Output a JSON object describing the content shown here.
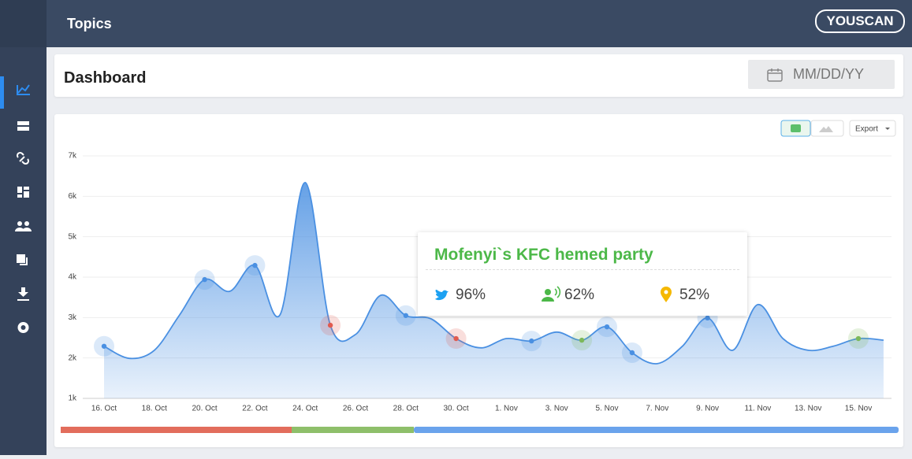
{
  "header": {
    "title": "Topics",
    "brand": "YOUSCAN"
  },
  "dashboard": {
    "title": "Dashboard",
    "date_placeholder": "MM/DD/YY",
    "export": "Export"
  },
  "tooltip": {
    "title": "Mofenyi`s KFC hemed party",
    "stats": [
      "96%",
      "62%",
      "52%"
    ]
  },
  "chart_data": {
    "type": "area",
    "color": "#4a90e2",
    "categories": [
      "16. Oct",
      null,
      "18. Oct",
      null,
      "20. Oct",
      null,
      "22. Oct",
      null,
      "24. Oct",
      null,
      "26. Oct",
      null,
      "28. Oct",
      null,
      "30. Oct",
      null,
      "1. Nov",
      null,
      "3. Nov",
      null,
      "5. Nov",
      null,
      "7. Nov",
      null,
      "9. Nov",
      null,
      "11. Nov",
      null,
      "13. Nov",
      null,
      "15. Nov",
      null
    ],
    "values": [
      2290,
      1990,
      2190,
      3060,
      3940,
      3650,
      4290,
      3070,
      6340,
      2810,
      2580,
      3550,
      3050,
      2970,
      2480,
      2250,
      2480,
      2420,
      2640,
      2440,
      2770,
      2130,
      1860,
      2290,
      2990,
      2190,
      3320,
      2480,
      2190,
      2290,
      2480,
      2440
    ],
    "events": [
      {
        "index": 0,
        "color": "#4a90e2"
      },
      {
        "index": 4,
        "color": "#4a90e2"
      },
      {
        "index": 6,
        "color": "#4a90e2"
      },
      {
        "index": 9,
        "color": "#e05a4f"
      },
      {
        "index": 12,
        "color": "#4a90e2"
      },
      {
        "index": 14,
        "color": "#e05a4f"
      },
      {
        "index": 17,
        "color": "#4a90e2"
      },
      {
        "index": 19,
        "color": "#7cb85a"
      },
      {
        "index": 20,
        "color": "#4a90e2"
      },
      {
        "index": 21,
        "color": "#4a90e2"
      },
      {
        "index": 24,
        "color": "#4a90e2"
      },
      {
        "index": 30,
        "color": "#7cb85a"
      }
    ],
    "ylim": [
      1000,
      7000
    ],
    "yticks": [
      {
        "value": 1000,
        "label": "1k"
      },
      {
        "value": 2000,
        "label": "2k"
      },
      {
        "value": 3000,
        "label": "3k"
      },
      {
        "value": 4000,
        "label": "4k"
      },
      {
        "value": 5000,
        "label": "5k"
      },
      {
        "value": 6000,
        "label": "6k"
      },
      {
        "value": 7000,
        "label": "7k"
      }
    ],
    "grid": true
  }
}
